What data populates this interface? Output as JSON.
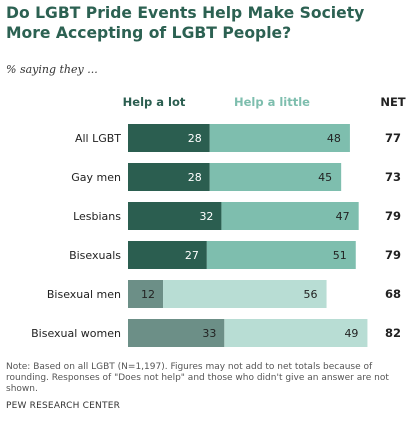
{
  "title": "Do LGBT Pride Events Help Make Society More Accepting of LGBT People?",
  "subtitle": "% saying they ...",
  "note": "Note: Based on all LGBT (N=1,197). Figures may not add to net totals because of rounding. Responses of \"Does not help\" and those who didn't give an answer are not shown.",
  "source": "PEW RESEARCH CENTER",
  "chart_data": {
    "type": "bar",
    "orientation": "horizontal",
    "stacked": true,
    "categories": [
      "All LGBT",
      "Gay men",
      "Lesbians",
      "Bisexuals",
      "Bisexual men",
      "Bisexual women"
    ],
    "series": [
      {
        "name": "Help a lot",
        "values": [
          28,
          28,
          32,
          27,
          12,
          33
        ]
      },
      {
        "name": "Help a little",
        "values": [
          48,
          45,
          47,
          51,
          56,
          49
        ]
      }
    ],
    "net_label": "NET",
    "net": [
      77,
      73,
      79,
      79,
      68,
      82
    ],
    "colors": {
      "help_a_lot": "#2b5e50",
      "help_a_little": "#7ebeae",
      "help_a_lot_muted": "#6c8f87",
      "help_a_little_muted": "#b8ddd4",
      "help_a_lot_header": "#2b5e50",
      "help_a_little_header": "#7ebeae"
    },
    "muted_rows": [
      4,
      5
    ]
  }
}
